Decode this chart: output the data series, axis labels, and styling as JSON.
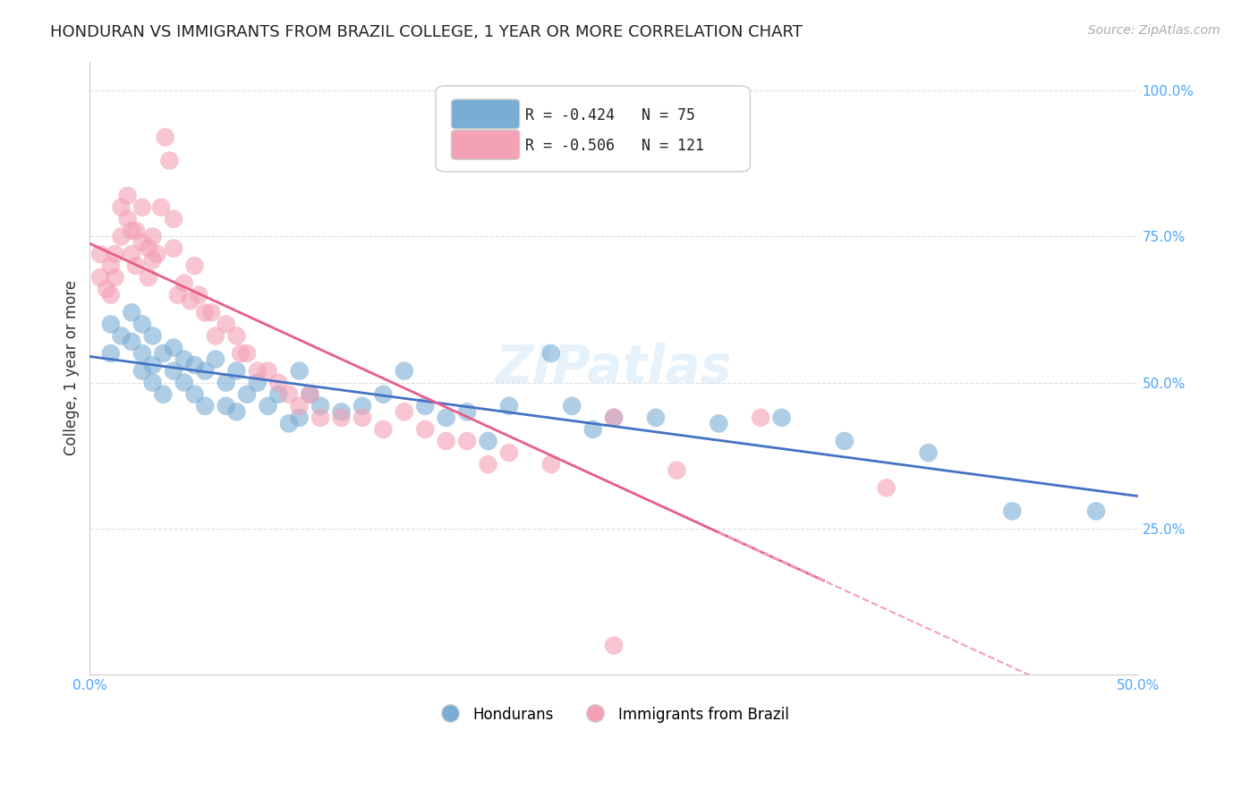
{
  "title": "HONDURAN VS IMMIGRANTS FROM BRAZIL COLLEGE, 1 YEAR OR MORE CORRELATION CHART",
  "source": "Source: ZipAtlas.com",
  "ylabel": "College, 1 year or more",
  "right_yticks": [
    "100.0%",
    "75.0%",
    "50.0%",
    "25.0%"
  ],
  "right_ytick_vals": [
    1.0,
    0.75,
    0.5,
    0.25
  ],
  "background_color": "#ffffff",
  "watermark": "ZIPatlas",
  "legend_blue_r": "R = -0.424",
  "legend_blue_n": "N = 75",
  "legend_pink_r": "R = -0.506",
  "legend_pink_n": "N = 121",
  "blue_color": "#7aadd4",
  "pink_color": "#f4a0b5",
  "blue_line_color": "#4472c4",
  "pink_line_color": "#e85c8a",
  "grid_color": "#dddddd",
  "title_color": "#222222",
  "axis_color": "#4da6ff",
  "xlim": [
    0.0,
    0.5
  ],
  "ylim": [
    0.0,
    1.05
  ],
  "blue_scatter_x": [
    0.01,
    0.01,
    0.015,
    0.02,
    0.02,
    0.025,
    0.025,
    0.025,
    0.03,
    0.03,
    0.03,
    0.035,
    0.035,
    0.04,
    0.04,
    0.045,
    0.045,
    0.05,
    0.05,
    0.055,
    0.055,
    0.06,
    0.065,
    0.065,
    0.07,
    0.07,
    0.075,
    0.08,
    0.085,
    0.09,
    0.095,
    0.1,
    0.1,
    0.105,
    0.11,
    0.12,
    0.13,
    0.14,
    0.15,
    0.16,
    0.17,
    0.18,
    0.19,
    0.2,
    0.22,
    0.23,
    0.24,
    0.25,
    0.27,
    0.3,
    0.33,
    0.36,
    0.4,
    0.44,
    0.48
  ],
  "blue_scatter_y": [
    0.6,
    0.55,
    0.58,
    0.62,
    0.57,
    0.6,
    0.55,
    0.52,
    0.58,
    0.53,
    0.5,
    0.55,
    0.48,
    0.56,
    0.52,
    0.54,
    0.5,
    0.53,
    0.48,
    0.52,
    0.46,
    0.54,
    0.5,
    0.46,
    0.52,
    0.45,
    0.48,
    0.5,
    0.46,
    0.48,
    0.43,
    0.52,
    0.44,
    0.48,
    0.46,
    0.45,
    0.46,
    0.48,
    0.52,
    0.46,
    0.44,
    0.45,
    0.4,
    0.46,
    0.55,
    0.46,
    0.42,
    0.44,
    0.44,
    0.43,
    0.44,
    0.4,
    0.38,
    0.28,
    0.28
  ],
  "pink_scatter_x": [
    0.005,
    0.005,
    0.008,
    0.01,
    0.01,
    0.012,
    0.012,
    0.015,
    0.015,
    0.018,
    0.018,
    0.02,
    0.02,
    0.022,
    0.022,
    0.025,
    0.025,
    0.028,
    0.028,
    0.03,
    0.03,
    0.032,
    0.034,
    0.036,
    0.038,
    0.04,
    0.04,
    0.042,
    0.045,
    0.048,
    0.05,
    0.052,
    0.055,
    0.058,
    0.06,
    0.065,
    0.07,
    0.072,
    0.075,
    0.08,
    0.085,
    0.09,
    0.095,
    0.1,
    0.105,
    0.11,
    0.12,
    0.13,
    0.14,
    0.15,
    0.16,
    0.17,
    0.18,
    0.19,
    0.2,
    0.22,
    0.25,
    0.28,
    0.32,
    0.25,
    0.38
  ],
  "pink_scatter_y": [
    0.68,
    0.72,
    0.66,
    0.7,
    0.65,
    0.72,
    0.68,
    0.8,
    0.75,
    0.78,
    0.82,
    0.76,
    0.72,
    0.76,
    0.7,
    0.74,
    0.8,
    0.73,
    0.68,
    0.75,
    0.71,
    0.72,
    0.8,
    0.92,
    0.88,
    0.78,
    0.73,
    0.65,
    0.67,
    0.64,
    0.7,
    0.65,
    0.62,
    0.62,
    0.58,
    0.6,
    0.58,
    0.55,
    0.55,
    0.52,
    0.52,
    0.5,
    0.48,
    0.46,
    0.48,
    0.44,
    0.44,
    0.44,
    0.42,
    0.45,
    0.42,
    0.4,
    0.4,
    0.36,
    0.38,
    0.36,
    0.44,
    0.35,
    0.44,
    0.05,
    0.32
  ],
  "bottom_legend_labels": [
    "Hondurans",
    "Immigrants from Brazil"
  ],
  "xticks": [
    0.0,
    0.05,
    0.1,
    0.15,
    0.2,
    0.25,
    0.3,
    0.35,
    0.4,
    0.45,
    0.5
  ],
  "xtick_labels": [
    "0.0%",
    "",
    "",
    "",
    "",
    "",
    "",
    "",
    "",
    "",
    "50.0%"
  ]
}
